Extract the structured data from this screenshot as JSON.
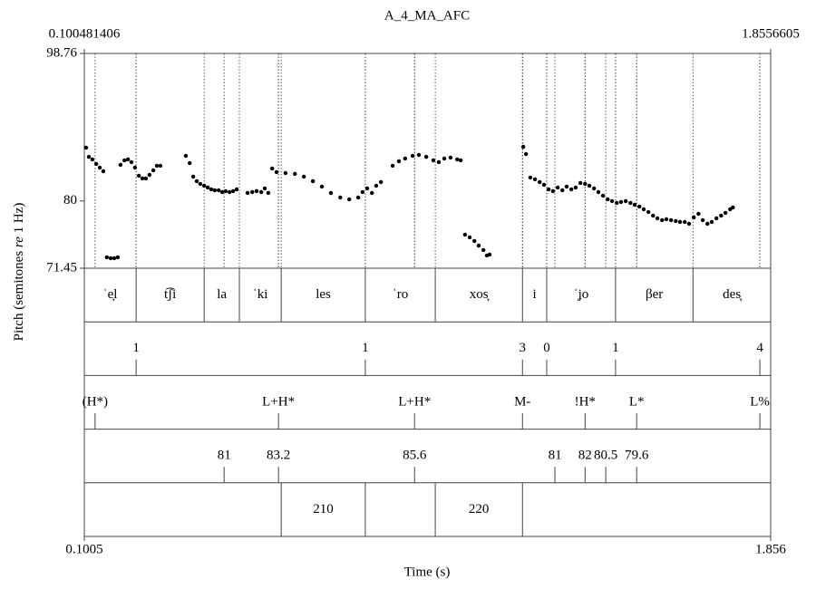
{
  "chart_data": {
    "type": "scatter",
    "title": "A_4_MA_AFC",
    "ylabel": [
      "Pitch (semitones ",
      "re",
      " 1 Hz)"
    ],
    "xlabel": "Time (s)",
    "xlim": [
      0.100481406,
      1.8556605
    ],
    "x2ticks": [
      0.100481406,
      1.8556605
    ],
    "xticks": [
      {
        "value": 0.100481406,
        "label": "0.1005"
      },
      {
        "value": 1.8556605,
        "label": "1.856"
      }
    ],
    "ylim": [
      71.45,
      98.76
    ],
    "yticks": [
      71.45,
      80,
      98.76
    ],
    "color": "#000000",
    "x": [
      0.105,
      0.112,
      0.121,
      0.131,
      0.14,
      0.149,
      0.158,
      0.168,
      0.177,
      0.186,
      0.193,
      0.203,
      0.212,
      0.221,
      0.23,
      0.24,
      0.249,
      0.258,
      0.267,
      0.277,
      0.286,
      0.295,
      0.36,
      0.37,
      0.379,
      0.388,
      0.397,
      0.407,
      0.416,
      0.425,
      0.434,
      0.444,
      0.453,
      0.462,
      0.472,
      0.481,
      0.49,
      0.518,
      0.53,
      0.541,
      0.553,
      0.562,
      0.571,
      0.581,
      0.592,
      0.615,
      0.639,
      0.662,
      0.685,
      0.708,
      0.731,
      0.755,
      0.778,
      0.801,
      0.812,
      0.824,
      0.836,
      0.847,
      0.859,
      0.889,
      0.905,
      0.921,
      0.94,
      0.956,
      0.975,
      0.993,
      1.007,
      1.021,
      1.037,
      1.054,
      1.063,
      1.074,
      1.086,
      1.098,
      1.109,
      1.121,
      1.13,
      1.137,
      1.223,
      1.23,
      1.241,
      1.253,
      1.265,
      1.276,
      1.288,
      1.299,
      1.311,
      1.323,
      1.334,
      1.346,
      1.357,
      1.369,
      1.381,
      1.392,
      1.404,
      1.415,
      1.427,
      1.439,
      1.45,
      1.462,
      1.473,
      1.485,
      1.497,
      1.508,
      1.52,
      1.531,
      1.543,
      1.555,
      1.566,
      1.578,
      1.589,
      1.601,
      1.613,
      1.624,
      1.636,
      1.647,
      1.659,
      1.671,
      1.682,
      1.694,
      1.705,
      1.717,
      1.729,
      1.74,
      1.752,
      1.759
    ],
    "values": [
      86.78,
      85.62,
      85.28,
      84.71,
      84.24,
      83.78,
      72.84,
      72.72,
      72.72,
      72.84,
      84.59,
      85.17,
      85.28,
      84.94,
      84.24,
      83.21,
      82.86,
      82.86,
      83.32,
      83.9,
      84.48,
      84.48,
      85.74,
      84.82,
      83.09,
      82.52,
      82.17,
      81.94,
      81.71,
      81.48,
      81.36,
      81.36,
      81.13,
      81.25,
      81.13,
      81.25,
      81.48,
      81.02,
      81.13,
      81.25,
      81.13,
      81.6,
      81.02,
      84.13,
      83.67,
      83.55,
      83.44,
      83.09,
      82.52,
      81.83,
      81.02,
      80.44,
      80.21,
      80.44,
      81.13,
      81.6,
      81.02,
      81.94,
      82.4,
      84.48,
      85.05,
      85.4,
      85.74,
      85.86,
      85.62,
      85.17,
      84.94,
      85.4,
      85.51,
      85.28,
      85.17,
      75.72,
      75.37,
      74.91,
      74.33,
      73.76,
      73.07,
      73.19,
      86.89,
      85.97,
      82.98,
      82.75,
      82.4,
      82.06,
      81.48,
      81.25,
      81.71,
      81.36,
      81.83,
      81.48,
      81.71,
      82.29,
      82.17,
      81.94,
      81.6,
      81.13,
      80.67,
      80.21,
      79.98,
      79.75,
      79.87,
      79.98,
      79.75,
      79.52,
      79.29,
      78.95,
      78.6,
      78.14,
      77.79,
      77.56,
      77.68,
      77.56,
      77.45,
      77.33,
      77.33,
      77.1,
      77.91,
      78.37,
      77.56,
      77.1,
      77.33,
      77.79,
      78.14,
      78.49,
      78.95,
      79.18
    ],
    "tiers": [
      {
        "kind": "interval",
        "boundaries": [
          0.233,
          0.407,
          0.497,
          0.604,
          0.819,
          0.998,
          1.221,
          1.283,
          1.459,
          1.657
        ],
        "labels": [
          "ˈe̞l",
          "t͡ʃi",
          "la",
          "ˈki",
          "les",
          "ˈro",
          "xos̞",
          "i",
          "ˈʝo",
          "βer",
          "des̞"
        ]
      },
      {
        "kind": "point",
        "points": [
          {
            "time": 0.233,
            "label": "1"
          },
          {
            "time": 0.819,
            "label": "1"
          },
          {
            "time": 1.221,
            "label": "3"
          },
          {
            "time": 1.283,
            "label": "0"
          },
          {
            "time": 1.459,
            "label": "1"
          },
          {
            "time": 1.828,
            "label": "4"
          }
        ]
      },
      {
        "kind": "point",
        "points": [
          {
            "time": 0.128,
            "label": "(H*)"
          },
          {
            "time": 0.597,
            "label": "L+H*"
          },
          {
            "time": 0.945,
            "label": "L+H*"
          },
          {
            "time": 1.221,
            "label": "M-"
          },
          {
            "time": 1.381,
            "label": "!H*"
          },
          {
            "time": 1.513,
            "label": "L*"
          },
          {
            "time": 1.828,
            "label": "L%"
          }
        ]
      },
      {
        "kind": "point",
        "points": [
          {
            "time": 0.458,
            "label": "81"
          },
          {
            "time": 0.597,
            "label": "83.2"
          },
          {
            "time": 0.945,
            "label": "85.6"
          },
          {
            "time": 1.304,
            "label": "81"
          },
          {
            "time": 1.381,
            "label": "82"
          },
          {
            "time": 1.434,
            "label": "80.5"
          },
          {
            "time": 1.513,
            "label": "79.6"
          }
        ]
      },
      {
        "kind": "interval",
        "boundaries": [
          0.604,
          0.819,
          0.998,
          1.221
        ],
        "labels": [
          null,
          "210",
          null,
          "220",
          null
        ]
      }
    ]
  }
}
